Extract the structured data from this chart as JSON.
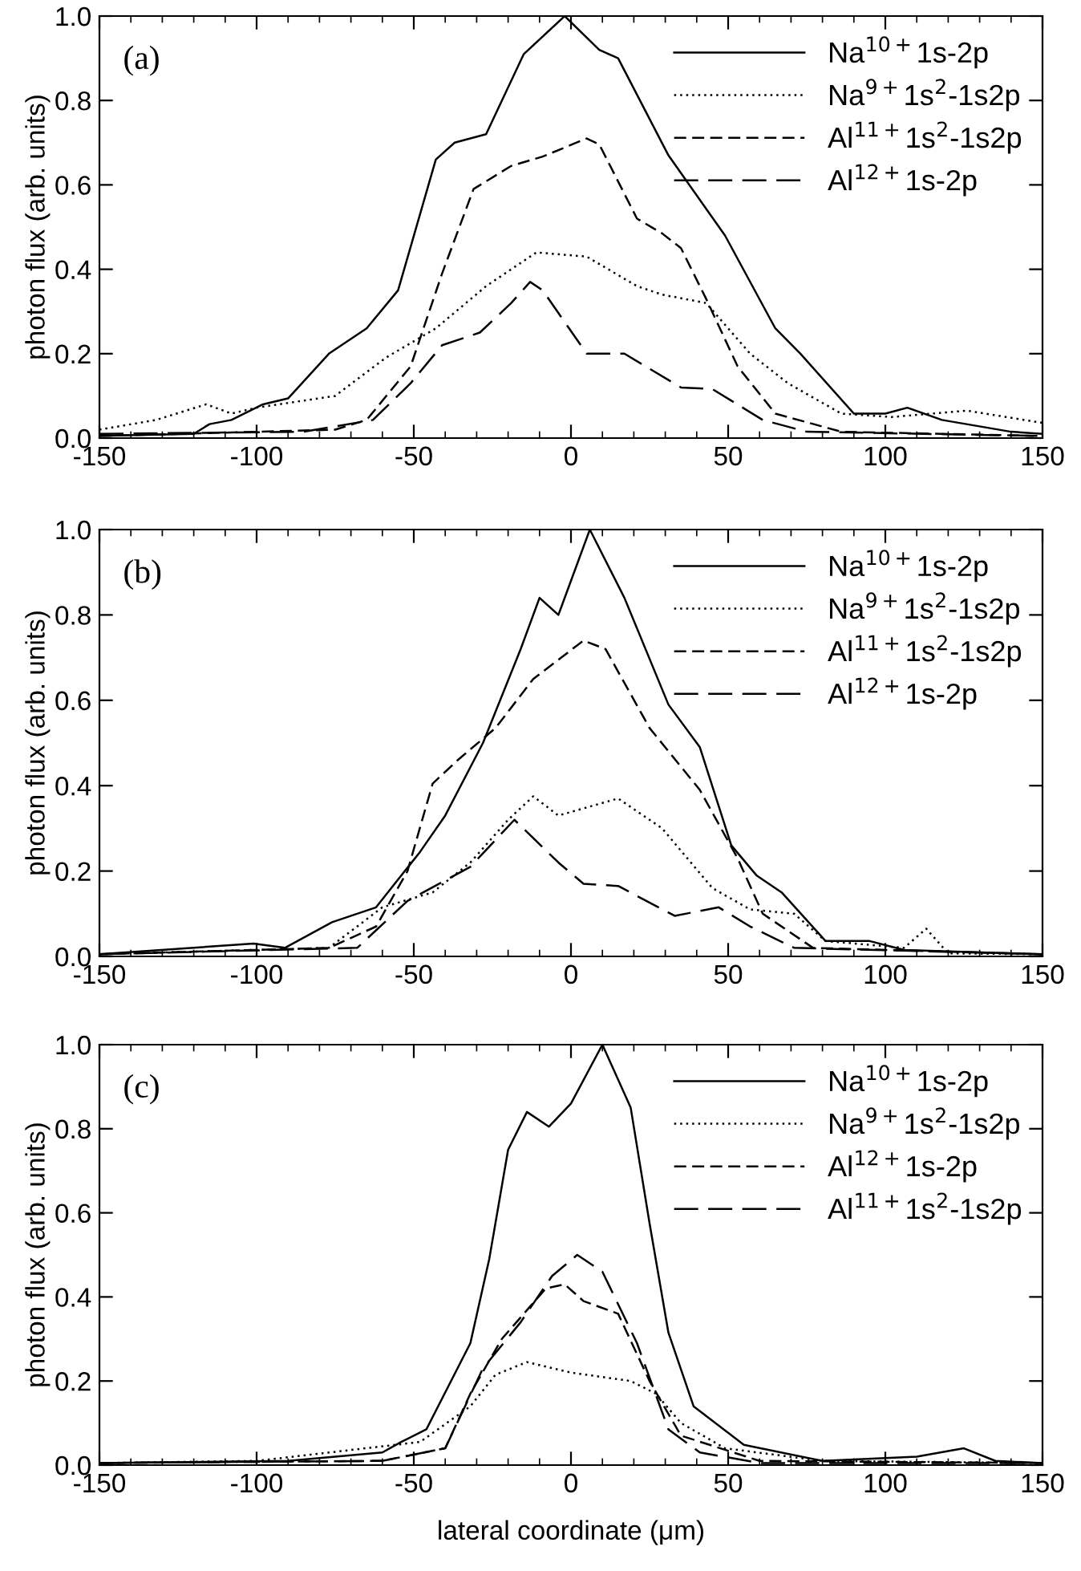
{
  "chart_data": [
    {
      "type": "line",
      "annotations": [
        "(a)"
      ],
      "ylabel": "photon flux (arb. units)",
      "xlim": [
        -150,
        150
      ],
      "ylim": [
        0,
        1.0
      ],
      "xticks": [
        -150,
        -100,
        -50,
        0,
        50,
        100,
        150
      ],
      "yticks": [
        {
          "value": 0,
          "label": "0.0"
        },
        {
          "value": 0.2,
          "label": "0.2"
        },
        {
          "value": 0.4,
          "label": "0.4"
        },
        {
          "value": 0.6,
          "label": "0.6"
        },
        {
          "value": 0.8,
          "label": "0.8"
        },
        {
          "value": 1.0,
          "label": "1.0"
        }
      ],
      "legend": "top right",
      "grid": false,
      "series": [
        {
          "name": "Na$^{10+}$1s-2p",
          "color": "#000000",
          "line_style": "solid",
          "x": [
            -150,
            -120,
            -115,
            -108,
            -98,
            -90,
            -77,
            -65,
            -55,
            -43,
            -37,
            -27,
            -15,
            -2,
            9,
            15,
            31,
            49,
            65,
            73,
            90,
            100,
            107,
            118,
            140,
            150
          ],
          "values": [
            0.005,
            0.01,
            0.033,
            0.043,
            0.08,
            0.094,
            0.2,
            0.26,
            0.35,
            0.66,
            0.7,
            0.72,
            0.91,
            1.0,
            0.92,
            0.9,
            0.67,
            0.48,
            0.26,
            0.2,
            0.058,
            0.058,
            0.072,
            0.043,
            0.015,
            0.01
          ]
        },
        {
          "name": "Na$^{9+}$1s$^{2}$-1s2p",
          "color": "#000000",
          "line_style": "dotted",
          "x": [
            -150,
            -132,
            -116,
            -108,
            -100,
            -75,
            -59,
            -43,
            -27,
            -11,
            5,
            21,
            29,
            43,
            57,
            69,
            86,
            102,
            126,
            150
          ],
          "values": [
            0.02,
            0.043,
            0.08,
            0.058,
            0.072,
            0.1,
            0.19,
            0.26,
            0.36,
            0.44,
            0.43,
            0.36,
            0.34,
            0.32,
            0.2,
            0.13,
            0.058,
            0.05,
            0.065,
            0.036
          ]
        },
        {
          "name": "Al$^{11+}$1s$^{2}$-1s2p",
          "color": "#000000",
          "line_style": "dashed",
          "x": [
            -150,
            -75,
            -65,
            -51,
            -41,
            -31,
            -19,
            -9,
            5,
            9,
            21,
            29,
            35,
            43,
            53,
            65,
            86,
            150
          ],
          "values": [
            0.005,
            0.02,
            0.043,
            0.17,
            0.39,
            0.59,
            0.645,
            0.667,
            0.71,
            0.696,
            0.52,
            0.485,
            0.45,
            0.33,
            0.17,
            0.058,
            0.015,
            0.005
          ]
        },
        {
          "name": "Al$^{12+}$1s-2p",
          "color": "#000000",
          "line_style": "dashed",
          "x": [
            -150,
            -85,
            -63,
            -51,
            -41,
            -29,
            -19,
            -13,
            -9,
            5,
            17,
            35,
            45,
            61,
            75,
            150
          ],
          "values": [
            0.01,
            0.015,
            0.043,
            0.13,
            0.22,
            0.25,
            0.32,
            0.37,
            0.35,
            0.2,
            0.2,
            0.12,
            0.116,
            0.043,
            0.015,
            0.005
          ]
        }
      ]
    },
    {
      "type": "line",
      "annotations": [
        "(b)"
      ],
      "ylabel": "photon flux (arb. units)",
      "xlim": [
        -150,
        150
      ],
      "ylim": [
        0,
        1.0
      ],
      "xticks": [
        -150,
        -100,
        -50,
        0,
        50,
        100,
        150
      ],
      "yticks": [
        {
          "value": 0,
          "label": "0.0"
        },
        {
          "value": 0.2,
          "label": "0.2"
        },
        {
          "value": 0.4,
          "label": "0.4"
        },
        {
          "value": 0.6,
          "label": "0.6"
        },
        {
          "value": 0.8,
          "label": "0.8"
        },
        {
          "value": 1.0,
          "label": "1.0"
        }
      ],
      "legend": "top right",
      "grid": false,
      "series": [
        {
          "name": "Na$^{10+}$1s-2p",
          "color": "#000000",
          "line_style": "solid",
          "x": [
            -150,
            -101,
            -91,
            -76,
            -62,
            -48,
            -40,
            -28,
            -16,
            -10,
            -4,
            6,
            17,
            31,
            41,
            51,
            59,
            67,
            81,
            95,
            106,
            150
          ],
          "values": [
            0.005,
            0.03,
            0.02,
            0.08,
            0.115,
            0.245,
            0.33,
            0.5,
            0.72,
            0.84,
            0.8,
            1.0,
            0.84,
            0.59,
            0.49,
            0.26,
            0.19,
            0.15,
            0.036,
            0.036,
            0.015,
            0.005
          ]
        },
        {
          "name": "Na$^{9+}$1s$^{2}$-1s2p",
          "color": "#000000",
          "line_style": "dotted",
          "x": [
            -150,
            -77,
            -60,
            -44,
            -32,
            -20,
            -12,
            -4,
            15,
            29,
            45,
            57,
            71,
            81,
            106,
            113,
            120,
            150
          ],
          "values": [
            0.005,
            0.02,
            0.115,
            0.15,
            0.22,
            0.32,
            0.375,
            0.33,
            0.37,
            0.3,
            0.16,
            0.11,
            0.1,
            0.036,
            0.02,
            0.065,
            0.007,
            0.005
          ]
        },
        {
          "name": "Al$^{11+}$1s$^{2}$-1s2p",
          "color": "#000000",
          "line_style": "dashed",
          "x": [
            -150,
            -77,
            -62,
            -52,
            -44,
            -36,
            -24,
            -12,
            4,
            11,
            25,
            41,
            53,
            61,
            77,
            150
          ],
          "values": [
            0.005,
            0.02,
            0.07,
            0.2,
            0.405,
            0.46,
            0.535,
            0.65,
            0.74,
            0.72,
            0.535,
            0.39,
            0.23,
            0.1,
            0.02,
            0.005
          ]
        },
        {
          "name": "Al$^{12+}$1s-2p",
          "color": "#000000",
          "line_style": "dashed",
          "x": [
            -150,
            -68,
            -52,
            -32,
            -18,
            -4,
            4,
            15,
            33,
            47,
            57,
            71,
            150
          ],
          "values": [
            0.005,
            0.02,
            0.13,
            0.21,
            0.32,
            0.22,
            0.17,
            0.165,
            0.095,
            0.115,
            0.07,
            0.02,
            0.005
          ]
        }
      ]
    },
    {
      "type": "line",
      "annotations": [
        "(c)"
      ],
      "ylabel": "photon flux (arb. units)",
      "xlabel": "lateral coordinate (μm)",
      "xlim": [
        -150,
        150
      ],
      "ylim": [
        0,
        1.0
      ],
      "xticks": [
        -150,
        -100,
        -50,
        0,
        50,
        100,
        150
      ],
      "yticks": [
        {
          "value": 0,
          "label": "0.0"
        },
        {
          "value": 0.2,
          "label": "0.2"
        },
        {
          "value": 0.4,
          "label": "0.4"
        },
        {
          "value": 0.6,
          "label": "0.6"
        },
        {
          "value": 0.8,
          "label": "0.8"
        },
        {
          "value": 1.0,
          "label": "1.0"
        }
      ],
      "legend": "top right",
      "grid": false,
      "series": [
        {
          "name": "Na$^{10+}$1s-2p",
          "color": "#000000",
          "line_style": "solid",
          "x": [
            -150,
            -90,
            -60,
            -54,
            -46,
            -32,
            -26,
            -20,
            -14,
            -7,
            0,
            10,
            19,
            25,
            31,
            39,
            55,
            80,
            110,
            125,
            135,
            150
          ],
          "values": [
            0.005,
            0.01,
            0.03,
            0.055,
            0.085,
            0.29,
            0.49,
            0.75,
            0.84,
            0.805,
            0.86,
            1.0,
            0.85,
            0.575,
            0.315,
            0.14,
            0.048,
            0.01,
            0.02,
            0.04,
            0.01,
            0.005
          ]
        },
        {
          "name": "Na$^{9+}$1s$^{2}$-1s2p",
          "color": "#000000",
          "line_style": "dotted",
          "x": [
            -150,
            -100,
            -48,
            -32,
            -24,
            -14,
            0,
            19,
            27,
            35,
            49,
            80,
            150
          ],
          "values": [
            0.005,
            0.01,
            0.055,
            0.14,
            0.215,
            0.245,
            0.22,
            0.2,
            0.17,
            0.1,
            0.04,
            0.01,
            0.005
          ]
        },
        {
          "name": "Al$^{12+}$1s-2p",
          "color": "#000000",
          "line_style": "dashed",
          "x": [
            -150,
            -60,
            -40,
            -32,
            -22,
            -8,
            -2,
            4,
            15,
            25,
            35,
            60,
            150
          ],
          "values": [
            0.005,
            0.01,
            0.04,
            0.17,
            0.3,
            0.42,
            0.43,
            0.39,
            0.36,
            0.2,
            0.07,
            0.01,
            0.005
          ]
        },
        {
          "name": "Al$^{11+}$1s$^{2}$-1s2p",
          "color": "#000000",
          "line_style": "dashed",
          "x": [
            -150,
            -60,
            -40,
            -28,
            -16,
            -6,
            2,
            10,
            21,
            31,
            41,
            60,
            150
          ],
          "values": [
            0.005,
            0.01,
            0.04,
            0.23,
            0.34,
            0.45,
            0.5,
            0.46,
            0.29,
            0.085,
            0.03,
            0.005,
            0.005
          ]
        }
      ]
    }
  ]
}
